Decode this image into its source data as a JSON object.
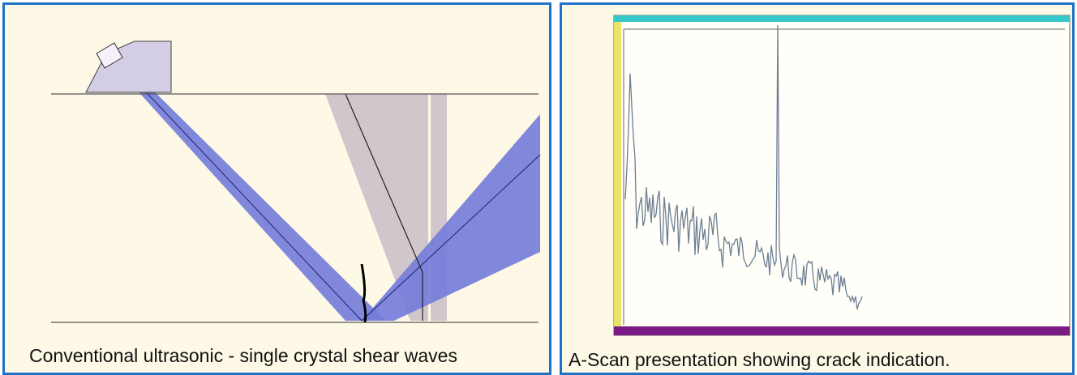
{
  "panels": [
    {
      "caption": "Conventional ultrasonic - single crystal shear waves"
    },
    {
      "caption": "A-Scan presentation showing crack indication."
    }
  ]
}
